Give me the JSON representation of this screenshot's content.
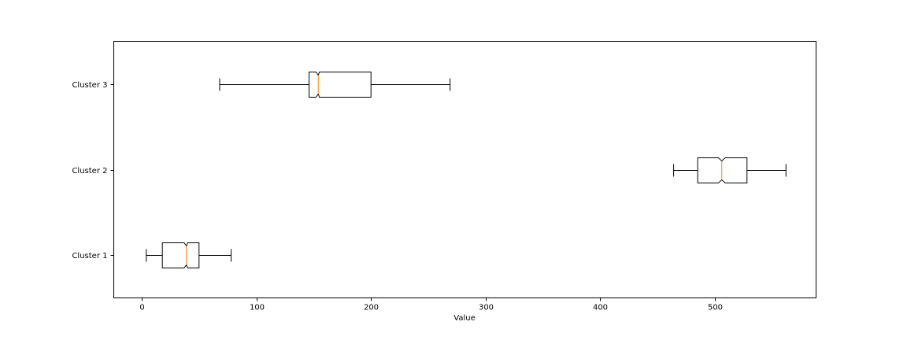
{
  "chart_data": {
    "type": "boxplot",
    "orientation": "horizontal",
    "notched": true,
    "xlabel": "Value",
    "ylabel": "",
    "title": "",
    "xlim": [
      -25,
      590
    ],
    "x_ticks": [
      0,
      100,
      200,
      300,
      400,
      500
    ],
    "categories": [
      "Cluster 1",
      "Cluster 2",
      "Cluster 3"
    ],
    "boxes": [
      {
        "label": "Cluster 1",
        "whisker_low": 4,
        "q1": 18,
        "median": 39,
        "q3": 50,
        "whisker_high": 78,
        "notch_low": 37,
        "notch_high": 40
      },
      {
        "label": "Cluster 2",
        "whisker_low": 464,
        "q1": 485,
        "median": 506,
        "q3": 528,
        "whisker_high": 562,
        "notch_low": 503,
        "notch_high": 509
      },
      {
        "label": "Cluster 3",
        "whisker_low": 68,
        "q1": 146,
        "median": 154,
        "q3": 200,
        "whisker_high": 269,
        "notch_low": 152,
        "notch_high": 155
      }
    ],
    "grid": false,
    "legend": "none",
    "colors": {
      "box": "#000000",
      "median": "#ff7f0e",
      "frame": "#000000"
    }
  }
}
